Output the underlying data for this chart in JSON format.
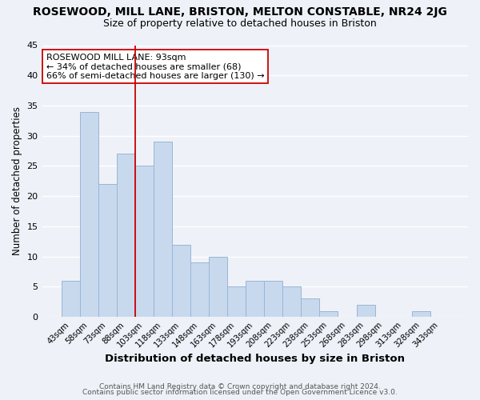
{
  "title": "ROSEWOOD, MILL LANE, BRISTON, MELTON CONSTABLE, NR24 2JG",
  "subtitle": "Size of property relative to detached houses in Briston",
  "xlabel": "Distribution of detached houses by size in Briston",
  "ylabel": "Number of detached properties",
  "bar_color": "#c8d9ee",
  "bar_edge_color": "#9ab5d5",
  "categories": [
    "43sqm",
    "58sqm",
    "73sqm",
    "88sqm",
    "103sqm",
    "118sqm",
    "133sqm",
    "148sqm",
    "163sqm",
    "178sqm",
    "193sqm",
    "208sqm",
    "223sqm",
    "238sqm",
    "253sqm",
    "268sqm",
    "283sqm",
    "298sqm",
    "313sqm",
    "328sqm",
    "343sqm"
  ],
  "values": [
    6,
    34,
    22,
    27,
    25,
    29,
    12,
    9,
    10,
    5,
    6,
    6,
    5,
    3,
    1,
    0,
    2,
    0,
    0,
    1,
    0
  ],
  "ylim": [
    0,
    45
  ],
  "yticks": [
    0,
    5,
    10,
    15,
    20,
    25,
    30,
    35,
    40,
    45
  ],
  "vline_x": 3.5,
  "vline_color": "#cc0000",
  "annotation_title": "ROSEWOOD MILL LANE: 93sqm",
  "annotation_line1": "← 34% of detached houses are smaller (68)",
  "annotation_line2": "66% of semi-detached houses are larger (130) →",
  "annotation_box_color": "#ffffff",
  "annotation_box_edge": "#cc0000",
  "footer_line1": "Contains HM Land Registry data © Crown copyright and database right 2024.",
  "footer_line2": "Contains public sector information licensed under the Open Government Licence v3.0.",
  "background_color": "#eef2f8",
  "grid_color": "#ffffff"
}
